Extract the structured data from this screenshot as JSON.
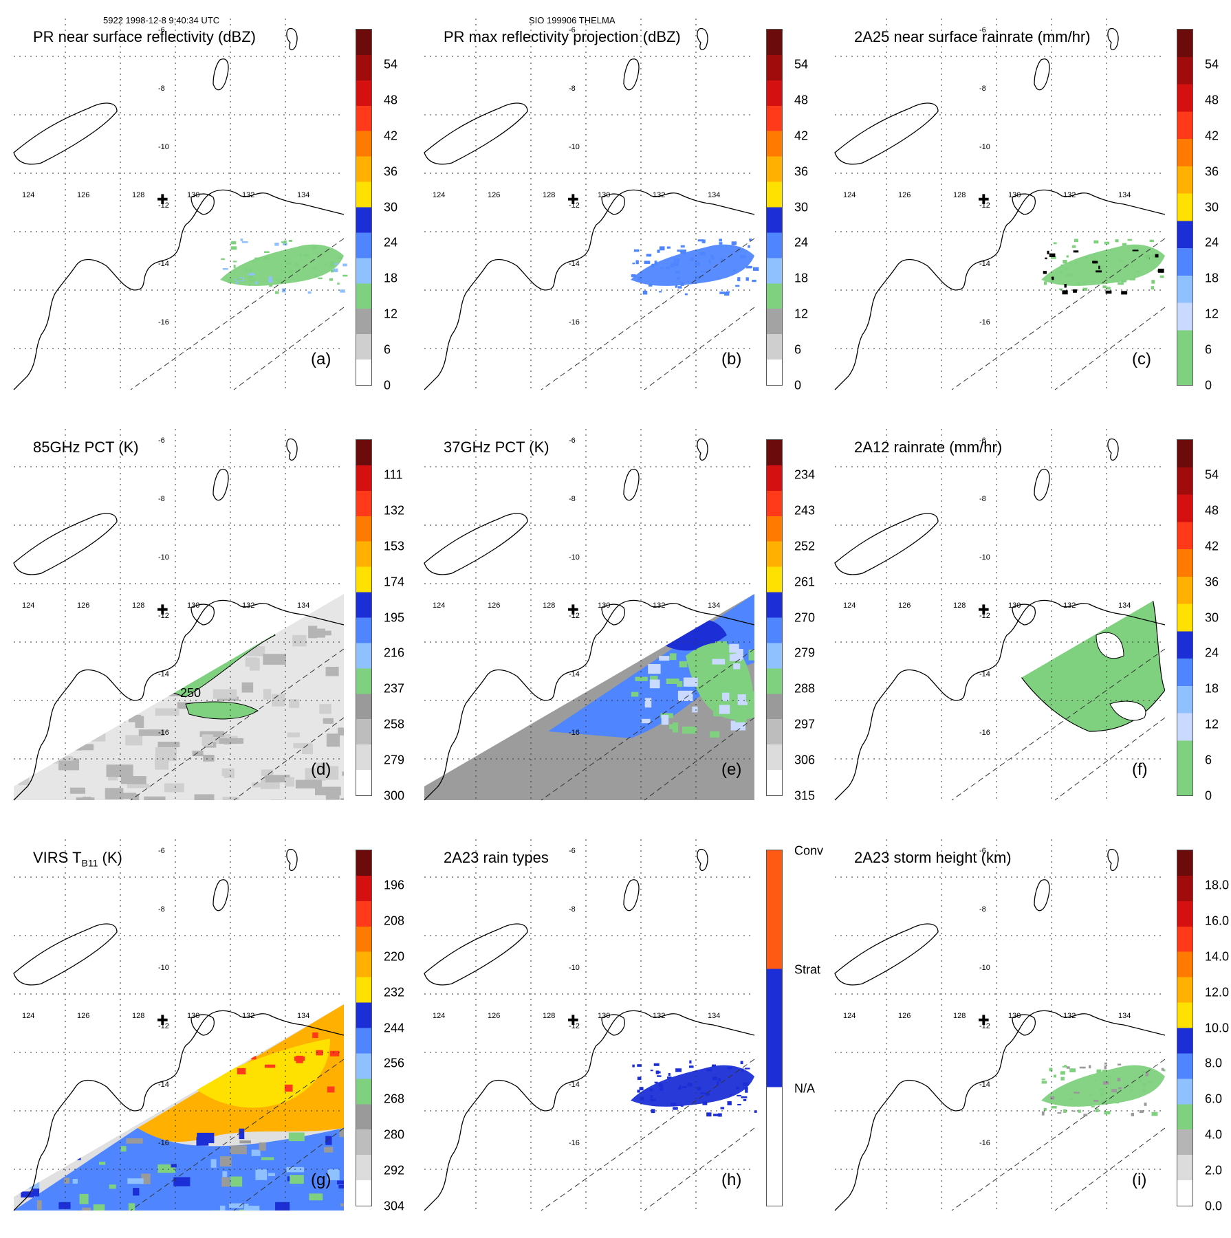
{
  "header": {
    "left": "5922 1998-12-8 9:40:34 UTC",
    "center": "SIO 199906 THELMA"
  },
  "lat_labels": [
    "-6",
    "-8",
    "-10",
    "-12",
    "-14",
    "-16"
  ],
  "lon_labels": [
    "124",
    "126",
    "128",
    "130",
    "132",
    "134"
  ],
  "panels": [
    {
      "title": "PR near surface reflectivity (dBZ)",
      "label": "(a)",
      "ticks": [
        "54",
        "48",
        "42",
        "36",
        "30",
        "24",
        "18",
        "12",
        "6",
        "0"
      ],
      "colors": [
        "#ffffff",
        "#cfcfcf",
        "#a3a3a3",
        "#7fd17f",
        "#8fc0ff",
        "#4f86ff",
        "#1c2fd6",
        "#ffe100",
        "#ffb000",
        "#ff7a00",
        "#ff3a1a",
        "#d51010",
        "#a00b0b",
        "#6b0b0b"
      ],
      "data": "blob",
      "dataX": [
        350,
        510
      ],
      "dataY": [
        388,
        470
      ]
    },
    {
      "title": "PR max reflectivity projection (dBZ)",
      "label": "(b)",
      "ticks": [
        "54",
        "48",
        "42",
        "36",
        "30",
        "24",
        "18",
        "12",
        "6",
        "0"
      ],
      "colors": [
        "#ffffff",
        "#cfcfcf",
        "#a3a3a3",
        "#7fd17f",
        "#8fc0ff",
        "#4f86ff",
        "#1c2fd6",
        "#ffe100",
        "#ffb000",
        "#ff7a00",
        "#ff3a1a",
        "#d51010",
        "#a00b0b",
        "#6b0b0b"
      ],
      "data": "blob-blue",
      "dataX": [
        350,
        510
      ],
      "dataY": [
        388,
        470
      ]
    },
    {
      "title": "2A25 near surface rainrate (mm/hr)",
      "label": "(c)",
      "ticks": [
        "54",
        "48",
        "42",
        "36",
        "30",
        "24",
        "18",
        "12",
        "6",
        "0"
      ],
      "colors": [
        "#7fd17f",
        "#7fd17f",
        "#c9d9ff",
        "#8fc0ff",
        "#4f86ff",
        "#1c2fd6",
        "#ffe100",
        "#ffb000",
        "#ff7a00",
        "#ff3a1a",
        "#d51010",
        "#a00b0b",
        "#6b0b0b"
      ],
      "data": "blob-green",
      "dataX": [
        350,
        510
      ],
      "dataY": [
        388,
        470
      ]
    },
    {
      "title": "85GHz PCT (K)",
      "label": "(d)",
      "ticks": [
        "111",
        "132",
        "153",
        "174",
        "195",
        "216",
        "237",
        "258",
        "279",
        "300"
      ],
      "colors": [
        "#ffffff",
        "#dcdcdc",
        "#bdbdbd",
        "#9a9a9a",
        "#7fd17f",
        "#8fc0ff",
        "#4f86ff",
        "#1c2fd6",
        "#ffe100",
        "#ffb000",
        "#ff7a00",
        "#ff3a1a",
        "#d51010",
        "#6b0b0b"
      ],
      "data": "swath-gray",
      "contour": "250"
    },
    {
      "title": "37GHz PCT (K)",
      "label": "(e)",
      "ticks": [
        "234",
        "243",
        "252",
        "261",
        "270",
        "279",
        "288",
        "297",
        "306",
        "315"
      ],
      "colors": [
        "#ffffff",
        "#dcdcdc",
        "#bdbdbd",
        "#9a9a9a",
        "#7fd17f",
        "#8fc0ff",
        "#4f86ff",
        "#1c2fd6",
        "#ffe100",
        "#ffb000",
        "#ff7a00",
        "#ff3a1a",
        "#d51010",
        "#6b0b0b"
      ],
      "data": "swath-blue"
    },
    {
      "title": "2A12 rainrate (mm/hr)",
      "label": "(f)",
      "ticks": [
        "54",
        "48",
        "42",
        "36",
        "30",
        "24",
        "18",
        "12",
        "6",
        "0"
      ],
      "colors": [
        "#7fd17f",
        "#7fd17f",
        "#c9d9ff",
        "#8fc0ff",
        "#4f86ff",
        "#1c2fd6",
        "#ffe100",
        "#ffb000",
        "#ff7a00",
        "#ff3a1a",
        "#d51010",
        "#a00b0b",
        "#6b0b0b"
      ],
      "data": "swath-green"
    },
    {
      "title": "VIRS T",
      "title_sub": "B11",
      "title_suffix": " (K)",
      "label": "(g)",
      "ticks": [
        "196",
        "208",
        "220",
        "232",
        "244",
        "256",
        "268",
        "280",
        "292",
        "304"
      ],
      "colors": [
        "#ffffff",
        "#dcdcdc",
        "#bdbdbd",
        "#9a9a9a",
        "#7fd17f",
        "#8fc0ff",
        "#4f86ff",
        "#1c2fd6",
        "#ffe100",
        "#ffb000",
        "#ff7a00",
        "#ff3a1a",
        "#d51010",
        "#6b0b0b"
      ],
      "data": "swath-virs"
    },
    {
      "title": "2A23 rain types",
      "label": "(h)",
      "ticks": [
        "Conv",
        "Strat",
        "N/A"
      ],
      "colors": [
        "#ffffff",
        "#1c2fd6",
        "#ff5a14"
      ],
      "data": "blob-navy",
      "dataX": [
        350,
        510
      ],
      "dataY": [
        388,
        470
      ]
    },
    {
      "title": "2A23 storm height (km)",
      "label": "(i)",
      "ticks": [
        "18.0",
        "16.0",
        "14.0",
        "12.0",
        "10.0",
        "8.0",
        "6.0",
        "4.0",
        "2.0",
        "0.0"
      ],
      "colors": [
        "#ffffff",
        "#dcdcdc",
        "#b5b5b5",
        "#7fd17f",
        "#8fc0ff",
        "#4f86ff",
        "#1c2fd6",
        "#ffe100",
        "#ffb000",
        "#ff7a00",
        "#ff3a1a",
        "#d51010",
        "#a00b0b",
        "#6b0b0b"
      ],
      "data": "blob-storm",
      "dataX": [
        350,
        510
      ],
      "dataY": [
        388,
        470
      ]
    }
  ]
}
